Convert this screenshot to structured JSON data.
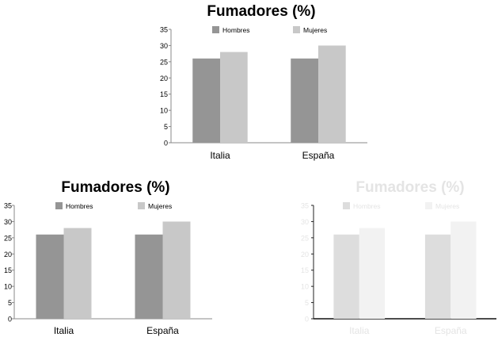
{
  "chart_data": [
    {
      "type": "bar",
      "title": "Fumadores (%)",
      "categories": [
        "Italia",
        "España"
      ],
      "series": [
        {
          "name": "Hombres",
          "values": [
            26,
            26
          ],
          "color": "#959595"
        },
        {
          "name": "Mujeres",
          "values": [
            28,
            30
          ],
          "color": "#c8c8c8"
        }
      ],
      "ylim": [
        0,
        35
      ],
      "yticks": [
        "0",
        "5",
        "10",
        "15",
        "20",
        "25",
        "30",
        "35"
      ],
      "legend": "top",
      "grid": false
    },
    {
      "type": "bar",
      "title": "Fumadores (%)",
      "categories": [
        "Italia",
        "España"
      ],
      "series": [
        {
          "name": "Hombres",
          "values": [
            26,
            26
          ],
          "color": "#959595"
        },
        {
          "name": "Mujeres",
          "values": [
            28,
            30
          ],
          "color": "#c8c8c8"
        }
      ],
      "ylim": [
        0,
        35
      ],
      "yticks": [
        "0",
        "5",
        "10",
        "15",
        "20",
        "25",
        "30",
        "35"
      ],
      "legend": "top",
      "grid": false
    },
    {
      "type": "bar",
      "title": "Fumadores (%)",
      "categories": [
        "Italia",
        "España"
      ],
      "series": [
        {
          "name": "Hombres",
          "values": [
            26,
            26
          ],
          "color": "#dddddd"
        },
        {
          "name": "Mujeres",
          "values": [
            28,
            30
          ],
          "color": "#f2f2f2"
        }
      ],
      "ylim": [
        0,
        35
      ],
      "yticks": [
        "0",
        "5",
        "10",
        "15",
        "20",
        "25",
        "30",
        "35"
      ],
      "legend": "top",
      "grid": false,
      "faded": true
    }
  ]
}
